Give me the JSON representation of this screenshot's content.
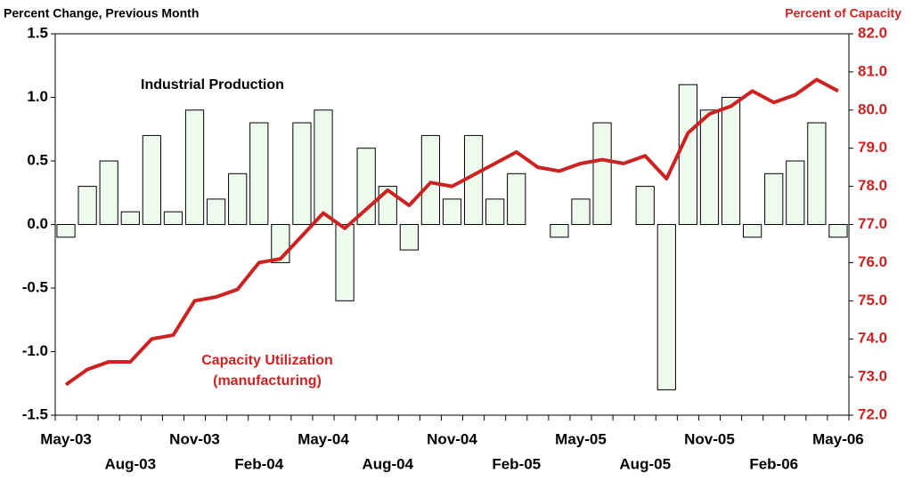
{
  "chart_data": {
    "type": "bar-line",
    "y_label": "Percent Change, Previous Month",
    "y2_label": "Percent of Capacity",
    "annotations": [
      {
        "text": "Industrial Production",
        "color": "#000000"
      },
      {
        "text": "Capacity Utilization",
        "color": "#cc2222"
      },
      {
        "text": "(manufacturing)",
        "color": "#cc2222"
      }
    ],
    "categories": [
      "May-03",
      null,
      null,
      "Aug-03",
      null,
      null,
      "Nov-03",
      null,
      null,
      "Feb-04",
      null,
      null,
      "May-04",
      null,
      null,
      "Aug-04",
      null,
      null,
      "Nov-04",
      null,
      null,
      "Feb-05",
      null,
      null,
      "May-05",
      null,
      null,
      "Aug-05",
      null,
      null,
      "Nov-05",
      null,
      null,
      "Feb-06",
      null,
      null,
      "May-06"
    ],
    "series": [
      {
        "type": "bar",
        "color": "#eefaee",
        "axis": "y",
        "values": [
          -0.1,
          0.3,
          0.5,
          0.1,
          0.7,
          0.1,
          0.9,
          0.2,
          0.4,
          0.8,
          -0.3,
          0.8,
          0.9,
          -0.6,
          0.6,
          0.3,
          -0.2,
          0.7,
          0.2,
          0.7,
          0.2,
          0.4,
          0.0,
          -0.1,
          0.2,
          0.8,
          0.0,
          0.3,
          -1.3,
          1.1,
          0.9,
          1.0,
          -0.1,
          0.4,
          0.5,
          0.8,
          -0.1
        ]
      },
      {
        "type": "line",
        "color": "#cc2222",
        "axis": "y2",
        "values": [
          72.8,
          73.2,
          73.4,
          73.4,
          74.0,
          74.1,
          75.0,
          75.1,
          75.3,
          76.0,
          76.1,
          76.7,
          77.3,
          76.9,
          77.4,
          77.9,
          77.5,
          78.1,
          78.0,
          78.3,
          78.6,
          78.9,
          78.5,
          78.4,
          78.6,
          78.7,
          78.6,
          78.8,
          78.2,
          79.4,
          79.9,
          80.1,
          80.5,
          80.2,
          80.4,
          80.8,
          80.5
        ]
      }
    ],
    "ylim": [
      -1.5,
      1.5
    ],
    "yticks": [
      1.5,
      {
        "value": 1.0,
        "label": "1.0"
      },
      0.5,
      {
        "value": 0.0,
        "label": "0.0"
      },
      -0.5,
      {
        "value": -1.0,
        "label": "-1.0"
      },
      -1.5
    ],
    "y2lim": [
      72,
      82
    ],
    "y2ticks": [
      {
        "value": 82,
        "label": "82.0"
      },
      {
        "value": 81,
        "label": "81.0"
      },
      {
        "value": 80,
        "label": "80.0"
      },
      {
        "value": 79,
        "label": "79.0"
      },
      {
        "value": 78,
        "label": "78.0"
      },
      {
        "value": 77,
        "label": "77.0"
      },
      {
        "value": 76,
        "label": "76.0"
      },
      {
        "value": 75,
        "label": "75.0"
      },
      {
        "value": 74,
        "label": "74.0"
      },
      {
        "value": 73,
        "label": "73.0"
      },
      {
        "value": 72,
        "label": "72.0"
      }
    ],
    "y2_color": "#cc2222",
    "grid": false
  }
}
